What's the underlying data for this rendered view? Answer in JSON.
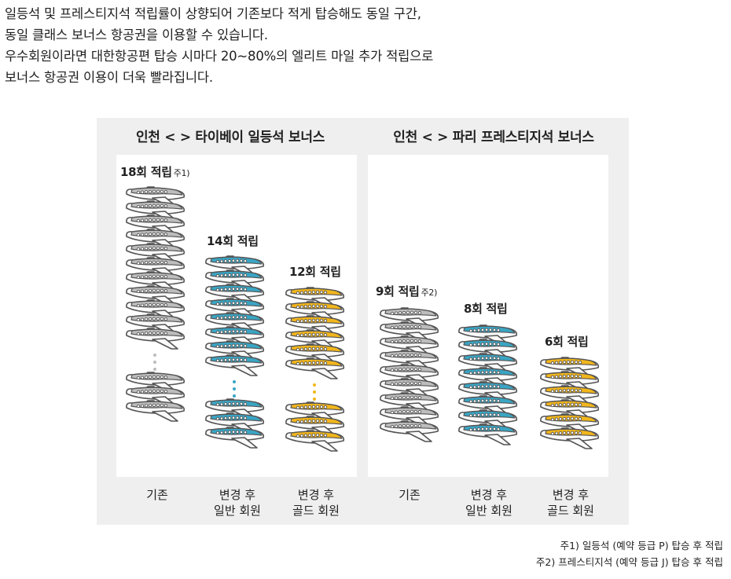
{
  "intro": {
    "lines": [
      "일등석 및 프레스티지석 적립률이 상향되어 기존보다 적게 탑승해도 동일 구간,",
      "동일 클래스 보너스 항공권을 이용할 수 있습니다.",
      "우수회원이라면 대한항공편 탑승 시마다 20~80%의 엘리트 마일 추가 적립으로",
      "보너스 항공권 이용이 더욱 빨라집니다."
    ]
  },
  "colors": {
    "basic": "#bdbdbd",
    "general": "#3aa5c4",
    "gold": "#f2b61c",
    "panel_bg": "#efefef"
  },
  "panels": [
    {
      "title": "인천 < > 타이베이 일등석 보너스",
      "columns": [
        {
          "label": "18회 적립",
          "note_ref": "주1)",
          "count": 18,
          "tier": "basic",
          "category": [
            "기존"
          ]
        },
        {
          "label": "14회 적립",
          "note_ref": "",
          "count": 14,
          "tier": "general",
          "category": [
            "변경 후",
            "일반 회원"
          ]
        },
        {
          "label": "12회 적립",
          "note_ref": "",
          "count": 12,
          "tier": "gold",
          "category": [
            "변경 후",
            "골드 회원"
          ]
        }
      ]
    },
    {
      "title": "인천 < > 파리 프레스티지석 보너스",
      "columns": [
        {
          "label": "9회 적립",
          "note_ref": "주2)",
          "count": 9,
          "tier": "basic",
          "category": [
            "기존"
          ]
        },
        {
          "label": "8회 적립",
          "note_ref": "",
          "count": 8,
          "tier": "general",
          "category": [
            "변경 후",
            "일반 회원"
          ]
        },
        {
          "label": "6회 적립",
          "note_ref": "",
          "count": 6,
          "tier": "gold",
          "category": [
            "변경 후",
            "골드 회원"
          ]
        }
      ]
    }
  ],
  "notes": [
    "주1) 일등석 (예약 등급 P) 탑승 후 적립",
    "주2) 프레스티지석 (예약 등급 J) 탑승 후 적립"
  ]
}
